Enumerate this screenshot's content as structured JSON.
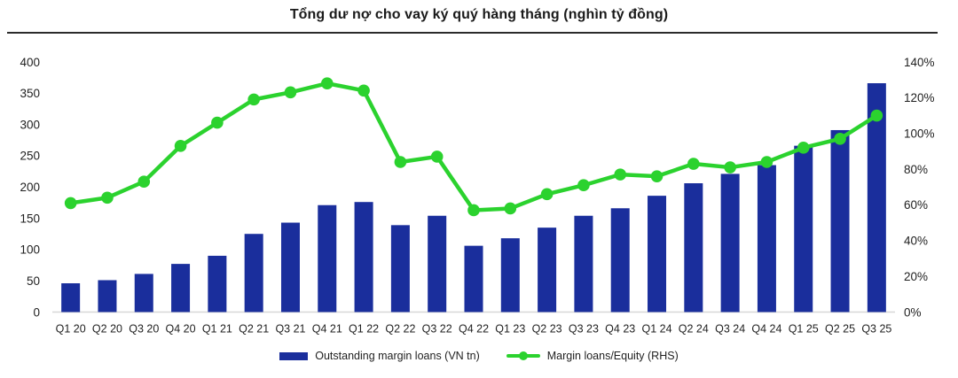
{
  "title": "Tổng dư nợ cho vay ký quý hàng tháng (nghìn tỷ đồng)",
  "legend": {
    "bar_label": "Outstanding margin loans (VN tn)",
    "line_label": "Margin loans/Equity (RHS)"
  },
  "colors": {
    "bar_blue": "#1A2E9C",
    "line_green": "#2BD22E",
    "axis_text": "#1F1F1F",
    "axis_line": "#D7D7D7",
    "divider": "#2B2B2B",
    "title_text": "#1A1A1A",
    "background": "#FFFFFF"
  },
  "chart_data": {
    "type": "combo",
    "title": "Tổng dư nợ cho vay ký quý hàng tháng (nghìn tỷ đồng)",
    "categories": [
      "Q1 20",
      "Q2 20",
      "Q3 20",
      "Q4 20",
      "Q1 21",
      "Q2 21",
      "Q3 21",
      "Q4 21",
      "Q1 22",
      "Q2 22",
      "Q3 22",
      "Q4 22",
      "Q1 23",
      "Q2 23",
      "Q3 23",
      "Q4 23",
      "Q1 24",
      "Q2 24",
      "Q3 24",
      "Q4 24",
      "Q1 25",
      "Q2 25",
      "Q3 25"
    ],
    "series": [
      {
        "name": "Outstanding margin loans (VN tn)",
        "type": "bar",
        "axis": "left",
        "color": "#1A2E9C",
        "values": [
          46,
          51,
          61,
          77,
          90,
          125,
          143,
          171,
          176,
          139,
          154,
          106,
          118,
          135,
          154,
          166,
          186,
          206,
          221,
          235,
          266,
          291,
          366
        ]
      },
      {
        "name": "Margin loans/Equity (RHS)",
        "type": "line",
        "axis": "right",
        "unit": "%",
        "color": "#2BD22E",
        "values": [
          61,
          64,
          73,
          93,
          106,
          119,
          123,
          128,
          124,
          84,
          87,
          57,
          58,
          66,
          71,
          77,
          76,
          83,
          81,
          84,
          92,
          97,
          110
        ]
      }
    ],
    "left_axis": {
      "min": 0,
      "max": 400,
      "tick_step": 50,
      "tick_labels": [
        "400",
        "350",
        "300",
        "250",
        "200",
        "150",
        "100",
        "50",
        "0"
      ]
    },
    "right_axis": {
      "min": 0,
      "max": 140,
      "tick_step": 20,
      "unit": "%",
      "tick_labels": [
        "140%",
        "120%",
        "100%",
        "80%",
        "60%",
        "40%",
        "20%",
        "0%"
      ]
    },
    "grid": false,
    "legend_position": "bottom"
  }
}
